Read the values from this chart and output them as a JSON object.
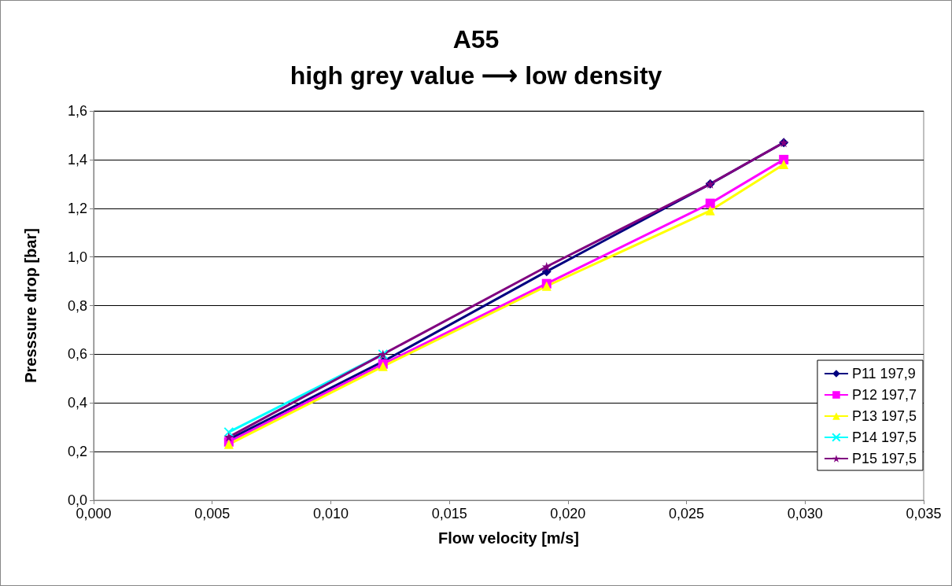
{
  "chart_data": {
    "type": "line",
    "title": "A55",
    "subtitle": "high grey value ⟶ low density",
    "xlabel": "Flow velocity [m/s]",
    "ylabel": "Presssure drop [bar]",
    "x": [
      0.0057,
      0.0122,
      0.0191,
      0.026,
      0.0291
    ],
    "xlim": [
      0,
      0.035
    ],
    "xticks": [
      {
        "value": 0,
        "label": "0,000"
      },
      {
        "value": 0.005,
        "label": "0,005"
      },
      {
        "value": 0.01,
        "label": "0,010"
      },
      {
        "value": 0.015,
        "label": "0,015"
      },
      {
        "value": 0.02,
        "label": "0,020"
      },
      {
        "value": 0.025,
        "label": "0,025"
      },
      {
        "value": 0.03,
        "label": "0,030"
      },
      {
        "value": 0.035,
        "label": "0,035"
      }
    ],
    "ylim": [
      0,
      1.6
    ],
    "yticks": [
      {
        "value": 0,
        "label": "0,0"
      },
      {
        "value": 0.2,
        "label": "0,2"
      },
      {
        "value": 0.4,
        "label": "0,4"
      },
      {
        "value": 0.6,
        "label": "0,6"
      },
      {
        "value": 0.8,
        "label": "0,8"
      },
      {
        "value": 1,
        "label": "1,0"
      },
      {
        "value": 1.2,
        "label": "1,2"
      },
      {
        "value": 1.4,
        "label": "1,4"
      },
      {
        "value": 1.6,
        "label": "1,6"
      }
    ],
    "grid": "y",
    "legend": "bottom right",
    "series": [
      {
        "name": "P11 197,9",
        "color": "#000080",
        "marker": "diamond",
        "values": [
          0.25,
          0.57,
          0.94,
          1.3,
          1.47
        ]
      },
      {
        "name": "P12 197,7",
        "color": "#ff00ff",
        "marker": "square",
        "values": [
          0.24,
          0.56,
          0.89,
          1.22,
          1.4
        ]
      },
      {
        "name": "P13 197,5",
        "color": "#ffff00",
        "marker": "triangle",
        "values": [
          0.23,
          0.55,
          0.88,
          1.19,
          1.38
        ]
      },
      {
        "name": "P14 197,5",
        "color": "#00ffff",
        "marker": "cross",
        "values": [
          0.28,
          0.6,
          null,
          null,
          null
        ]
      },
      {
        "name": "P15 197,5",
        "color": "#800080",
        "marker": "star",
        "values": [
          0.26,
          0.6,
          0.96,
          1.3,
          1.47
        ]
      }
    ]
  }
}
